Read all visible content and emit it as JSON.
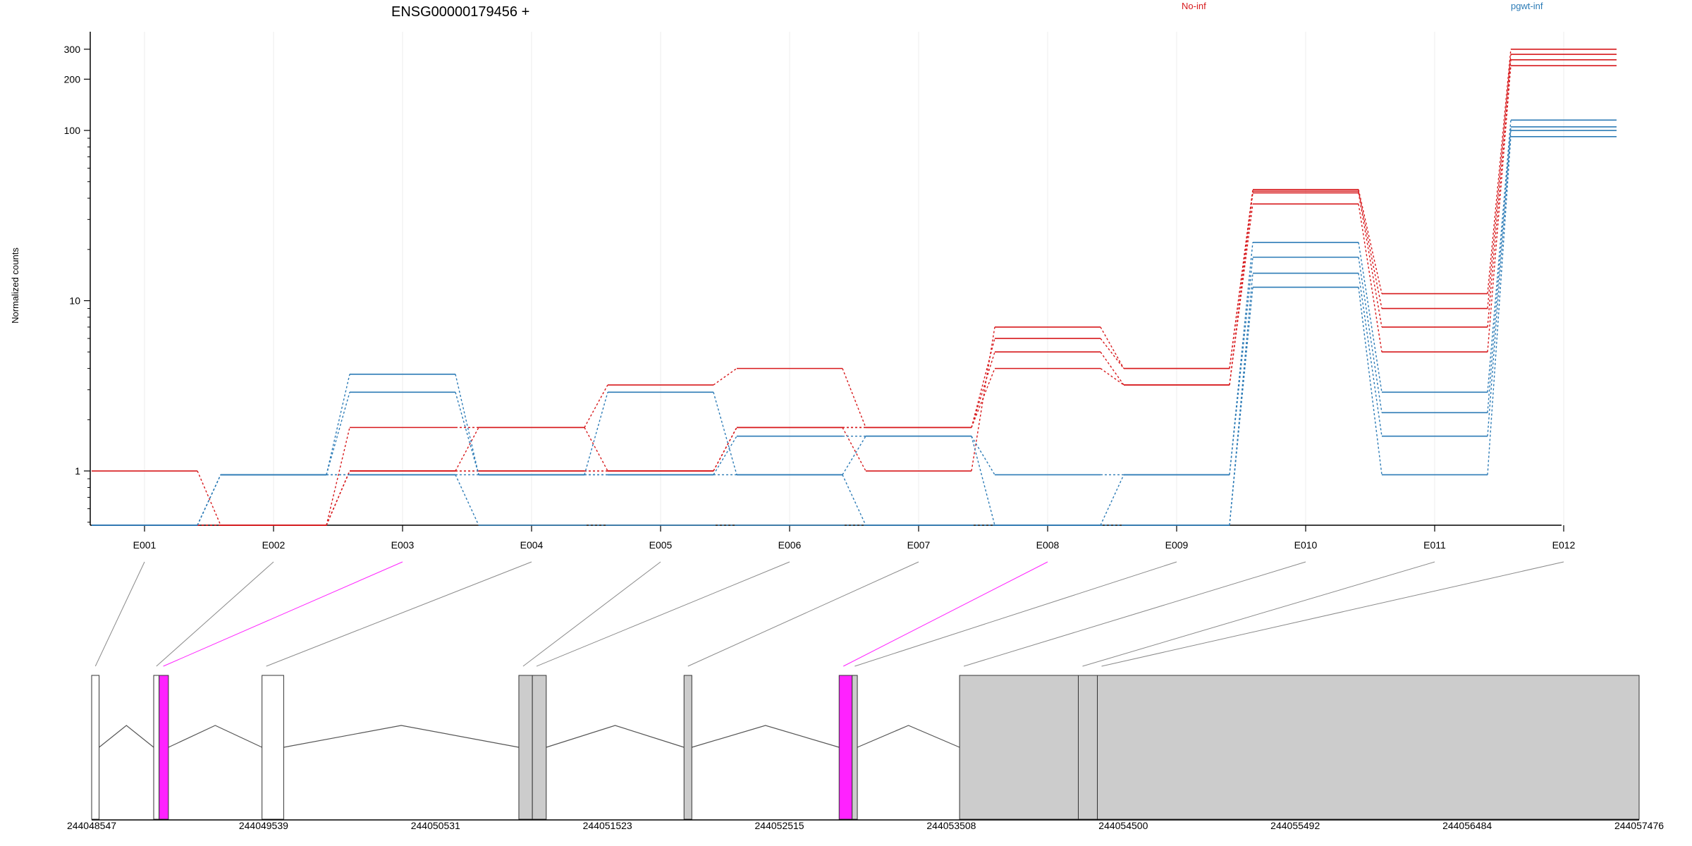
{
  "figure": {
    "title": "ENSG00000179456 +",
    "ylabel": "Normalized counts"
  },
  "legend": [
    {
      "label": "No-inf",
      "color": "#d7191c"
    },
    {
      "label": "pgwt-inf",
      "color": "#2c7bb6"
    }
  ],
  "chart_data": {
    "type": "line",
    "title": "ENSG00000179456 +",
    "ylabel": "Normalized counts",
    "xlabel": "",
    "y_scale": "log",
    "y_ticks": [
      1,
      10,
      100,
      200,
      300
    ],
    "y_tick_labels": [
      "1",
      "10",
      "100",
      "200",
      "300"
    ],
    "ylim": [
      0.48,
      380
    ],
    "categories": [
      "E001",
      "E002",
      "E003",
      "E004",
      "E005",
      "E006",
      "E007",
      "E008",
      "E009",
      "E010",
      "E011",
      "E012"
    ],
    "grid": "vertical light",
    "legend_position": "top",
    "series": [
      {
        "name": "No-inf",
        "values": [
          1.0,
          0.48,
          1.0,
          1.8,
          1.0,
          1.8,
          1.0,
          7.0,
          4.0,
          45,
          11,
          300
        ]
      },
      {
        "name": "No-inf",
        "values": [
          0.48,
          0.48,
          1.8,
          1.8,
          3.2,
          4.0,
          1.8,
          6.0,
          4.0,
          44,
          9,
          280
        ]
      },
      {
        "name": "No-inf",
        "values": [
          0.48,
          0.48,
          1.0,
          1.0,
          1.0,
          1.8,
          1.8,
          5.0,
          3.2,
          43,
          7,
          260
        ]
      },
      {
        "name": "No-inf",
        "values": [
          0.48,
          0.48,
          1.0,
          1.0,
          1.0,
          1.8,
          1.8,
          4.0,
          3.2,
          37,
          5,
          240
        ]
      },
      {
        "name": "pgwt-inf",
        "values": [
          0.48,
          0.95,
          3.7,
          0.95,
          2.9,
          0.95,
          1.6,
          0.95,
          0.95,
          22,
          2.9,
          115
        ]
      },
      {
        "name": "pgwt-inf",
        "values": [
          0.48,
          0.95,
          2.9,
          0.95,
          0.95,
          1.6,
          1.6,
          0.48,
          0.95,
          18,
          2.2,
          105
        ]
      },
      {
        "name": "pgwt-inf",
        "values": [
          0.48,
          0.95,
          0.95,
          0.95,
          0.95,
          0.95,
          0.48,
          0.48,
          0.48,
          14.5,
          1.6,
          100
        ]
      },
      {
        "name": "pgwt-inf",
        "values": [
          0.48,
          0.95,
          0.95,
          0.48,
          0.48,
          0.48,
          0.48,
          0.48,
          0.48,
          12,
          0.95,
          92
        ]
      }
    ],
    "gene_model": {
      "coordinate_labels": [
        "244048547",
        "244049539",
        "244050531",
        "244051523",
        "244052515",
        "244053508",
        "244054500",
        "244055492",
        "244056484",
        "244057476"
      ],
      "exons": [
        {
          "id": "E001",
          "start": 244048547,
          "end": 244048590,
          "fill": "#ffffff"
        },
        {
          "id": "E002",
          "start": 244048905,
          "end": 244048936,
          "fill": "#ffffff"
        },
        {
          "id": "E003",
          "start": 244048936,
          "end": 244048990,
          "fill": "#ff22ff"
        },
        {
          "id": "E004",
          "start": 244049530,
          "end": 244049655,
          "fill": "#ffffff"
        },
        {
          "id": "E005",
          "start": 244051012,
          "end": 244051090,
          "fill": "#cccccc"
        },
        {
          "id": "E006",
          "start": 244051090,
          "end": 244051170,
          "fill": "#cccccc"
        },
        {
          "id": "E007",
          "start": 244051965,
          "end": 244052010,
          "fill": "#cccccc"
        },
        {
          "id": "E008",
          "start": 244052860,
          "end": 244052935,
          "fill": "#ff22ff"
        },
        {
          "id": "E009",
          "start": 244052935,
          "end": 244052965,
          "fill": "#cccccc"
        },
        {
          "id": "E010",
          "start": 244053555,
          "end": 244054240,
          "fill": "#cccccc"
        },
        {
          "id": "E011",
          "start": 244054240,
          "end": 244054350,
          "fill": "#cccccc"
        },
        {
          "id": "E012",
          "start": 244054350,
          "end": 244057476,
          "fill": "#cccccc"
        }
      ],
      "highlighted_exons": [
        "E003",
        "E008"
      ],
      "highlight_color": "#ff22ff"
    }
  }
}
